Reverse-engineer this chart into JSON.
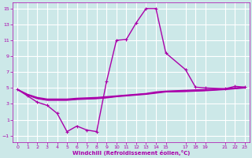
{
  "xlabel": "Windchill (Refroidissement éolien,°C)",
  "bg_color": "#cce8e8",
  "grid_color": "#ffffff",
  "line_color": "#aa00aa",
  "x_ticks": [
    0,
    1,
    2,
    3,
    4,
    5,
    6,
    7,
    8,
    9,
    10,
    11,
    12,
    13,
    14,
    15,
    17,
    18,
    19,
    21,
    22,
    23
  ],
  "xlim": [
    -0.5,
    23.5
  ],
  "ylim": [
    -1.8,
    15.8
  ],
  "y_ticks": [
    -1,
    1,
    3,
    5,
    7,
    9,
    11,
    13,
    15
  ],
  "series": [
    {
      "x": [
        0,
        1,
        2,
        3,
        4,
        5,
        6,
        7,
        8,
        9,
        10,
        11,
        12,
        13,
        14,
        15,
        17,
        18,
        19,
        21,
        22,
        23
      ],
      "y": [
        4.8,
        4.2,
        3.8,
        3.6,
        3.6,
        3.6,
        3.7,
        3.75,
        3.8,
        3.9,
        4.0,
        4.1,
        4.2,
        4.3,
        4.5,
        4.6,
        4.7,
        4.75,
        4.8,
        4.9,
        5.0,
        5.1
      ],
      "marker": false,
      "lw": 1.0
    },
    {
      "x": [
        0,
        1,
        2,
        3,
        4,
        5,
        6,
        7,
        8,
        9,
        10,
        11,
        12,
        13,
        14,
        15,
        17,
        18,
        19,
        21,
        22,
        23
      ],
      "y": [
        4.8,
        4.15,
        3.7,
        3.5,
        3.5,
        3.5,
        3.6,
        3.65,
        3.7,
        3.8,
        3.95,
        4.05,
        4.15,
        4.25,
        4.4,
        4.55,
        4.6,
        4.65,
        4.7,
        4.85,
        4.95,
        5.05
      ],
      "marker": false,
      "lw": 1.0
    },
    {
      "x": [
        0,
        1,
        2,
        3,
        4,
        5,
        6,
        7,
        8,
        9,
        10,
        11,
        12,
        13,
        14,
        15,
        17,
        18,
        19,
        21,
        22,
        23
      ],
      "y": [
        4.8,
        4.1,
        3.65,
        3.45,
        3.45,
        3.45,
        3.55,
        3.6,
        3.65,
        3.75,
        3.9,
        4.0,
        4.1,
        4.2,
        4.35,
        4.5,
        4.55,
        4.6,
        4.65,
        4.8,
        4.9,
        5.0
      ],
      "marker": false,
      "lw": 1.0
    },
    {
      "x": [
        0,
        1,
        2,
        3,
        4,
        5,
        6,
        7,
        8,
        9,
        10,
        11,
        12,
        13,
        14,
        15,
        17,
        18,
        19,
        21,
        22,
        23
      ],
      "y": [
        4.8,
        4.0,
        3.2,
        2.8,
        1.8,
        -0.5,
        0.2,
        -0.3,
        -0.5,
        5.8,
        11.0,
        11.1,
        13.2,
        15.0,
        15.0,
        9.4,
        7.3,
        5.1,
        5.0,
        4.9,
        5.2,
        5.1
      ],
      "marker": true,
      "lw": 1.0
    }
  ]
}
